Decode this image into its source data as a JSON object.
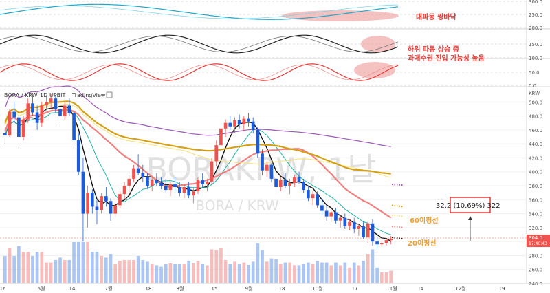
{
  "header": {
    "symbol": "BORA / KRW",
    "interval": "1D",
    "exchange": "UPBIT",
    "brand": "TradingView",
    "axis_unit": "KRW"
  },
  "watermark": {
    "big": "BORAKRW, 1날",
    "small": "BORA / KRW"
  },
  "price_tag": {
    "price": "304.0",
    "time": "17:40:43"
  },
  "measure": {
    "text": "32.2 (10.69%) 322"
  },
  "annotations": {
    "top": "대파동 쌍바닥",
    "mid_line1": "하위 파동 상승 중",
    "mid_line2": "과매수권 진입 가능성 높음",
    "ma60": "60이평선",
    "ma20": "20이평선"
  },
  "colors": {
    "up": "#ef5350",
    "down": "#1e5bd8",
    "ma20": "#f08080",
    "ma60": "#d4a017",
    "ma120": "#9b59b6",
    "annot": "#e53935",
    "ma_label": "#f0a030",
    "highlight": "#ef9a9a"
  },
  "chart_data": [
    {
      "type": "line",
      "panel": "indicator-1",
      "y_ticks": [
        "300.0",
        "250.0",
        "200.0"
      ],
      "ylim": [
        200,
        300
      ]
    },
    {
      "type": "line",
      "panel": "indicator-2",
      "y_ticks": [
        "150.0",
        "100.0"
      ],
      "ylim": [
        100,
        200
      ]
    },
    {
      "type": "line",
      "panel": "indicator-3",
      "y_ticks": [
        "50.0",
        "0.0"
      ],
      "ylim": [
        0,
        100
      ]
    },
    {
      "type": "candlestick",
      "panel": "main",
      "ylabel": "KRW",
      "ylim": [
        240,
        520
      ],
      "y_ticks": [
        "500.0",
        "480.0",
        "460.0",
        "440.0",
        "420.0",
        "400.0",
        "380.0",
        "360.0",
        "340.0",
        "320.0",
        "300.0",
        "280.0",
        "260.0",
        "240.0"
      ],
      "x_ticks": [
        "16",
        "6월",
        "14",
        "7월",
        "18",
        "8월",
        "15",
        "9월",
        "18",
        "10월",
        "17",
        "11월",
        "14",
        "12월",
        "19"
      ],
      "candles": [
        [
          455,
          470,
          440,
          452
        ],
        [
          452,
          490,
          450,
          486
        ],
        [
          486,
          500,
          470,
          478
        ],
        [
          478,
          482,
          440,
          450
        ],
        [
          450,
          480,
          445,
          475
        ],
        [
          475,
          505,
          470,
          498
        ],
        [
          498,
          510,
          480,
          485
        ],
        [
          485,
          495,
          460,
          470
        ],
        [
          470,
          500,
          465,
          495
        ],
        [
          495,
          510,
          488,
          500
        ],
        [
          500,
          512,
          490,
          505
        ],
        [
          505,
          510,
          485,
          490
        ],
        [
          490,
          498,
          470,
          480
        ],
        [
          480,
          500,
          475,
          495
        ],
        [
          495,
          505,
          480,
          484
        ],
        [
          484,
          490,
          440,
          445
        ],
        [
          445,
          455,
          395,
          400
        ],
        [
          400,
          420,
          300,
          340
        ],
        [
          340,
          380,
          320,
          370
        ],
        [
          370,
          375,
          340,
          350
        ],
        [
          350,
          360,
          325,
          345
        ],
        [
          345,
          370,
          340,
          365
        ],
        [
          365,
          378,
          350,
          358
        ],
        [
          358,
          362,
          330,
          340
        ],
        [
          340,
          355,
          335,
          352
        ],
        [
          352,
          372,
          348,
          368
        ],
        [
          368,
          385,
          360,
          380
        ],
        [
          380,
          395,
          370,
          390
        ],
        [
          390,
          410,
          385,
          405
        ],
        [
          405,
          425,
          395,
          398
        ],
        [
          398,
          410,
          385,
          392
        ],
        [
          392,
          398,
          375,
          380
        ],
        [
          380,
          392,
          372,
          388
        ],
        [
          388,
          398,
          380,
          384
        ],
        [
          384,
          392,
          375,
          380
        ],
        [
          380,
          390,
          370,
          374
        ],
        [
          374,
          386,
          365,
          382
        ],
        [
          382,
          392,
          372,
          378
        ],
        [
          378,
          385,
          365,
          370
        ],
        [
          370,
          382,
          362,
          378
        ],
        [
          378,
          386,
          362,
          366
        ],
        [
          366,
          376,
          355,
          372
        ],
        [
          372,
          392,
          368,
          388
        ],
        [
          388,
          398,
          378,
          382
        ],
        [
          382,
          390,
          372,
          386
        ],
        [
          386,
          420,
          382,
          415
        ],
        [
          415,
          445,
          408,
          438
        ],
        [
          438,
          470,
          430,
          462
        ],
        [
          462,
          475,
          450,
          470
        ],
        [
          470,
          480,
          460,
          465
        ],
        [
          465,
          478,
          455,
          474
        ],
        [
          474,
          482,
          462,
          468
        ],
        [
          468,
          480,
          458,
          476
        ],
        [
          476,
          484,
          465,
          472
        ],
        [
          472,
          478,
          455,
          460
        ],
        [
          460,
          465,
          420,
          426
        ],
        [
          426,
          432,
          395,
          402
        ],
        [
          402,
          415,
          392,
          410
        ],
        [
          410,
          412,
          385,
          390
        ],
        [
          390,
          396,
          370,
          378
        ],
        [
          378,
          392,
          372,
          388
        ],
        [
          388,
          398,
          376,
          380
        ],
        [
          380,
          390,
          368,
          384
        ],
        [
          384,
          396,
          378,
          392
        ],
        [
          392,
          400,
          382,
          386
        ],
        [
          386,
          390,
          370,
          374
        ],
        [
          374,
          380,
          358,
          362
        ],
        [
          362,
          372,
          352,
          368
        ],
        [
          368,
          372,
          348,
          352
        ],
        [
          352,
          360,
          338,
          344
        ],
        [
          344,
          352,
          330,
          336
        ],
        [
          336,
          346,
          328,
          342
        ],
        [
          342,
          348,
          326,
          330
        ],
        [
          330,
          338,
          320,
          334
        ],
        [
          334,
          340,
          318,
          322
        ],
        [
          322,
          332,
          316,
          328
        ],
        [
          328,
          334,
          312,
          318
        ],
        [
          318,
          326,
          308,
          322
        ],
        [
          322,
          328,
          304,
          306
        ],
        [
          306,
          330,
          298,
          326
        ],
        [
          326,
          332,
          294,
          300
        ],
        [
          300,
          306,
          290,
          296
        ],
        [
          296,
          302,
          292,
          298
        ],
        [
          298,
          304,
          294,
          302
        ],
        [
          302,
          308,
          296,
          304
        ]
      ]
    }
  ]
}
